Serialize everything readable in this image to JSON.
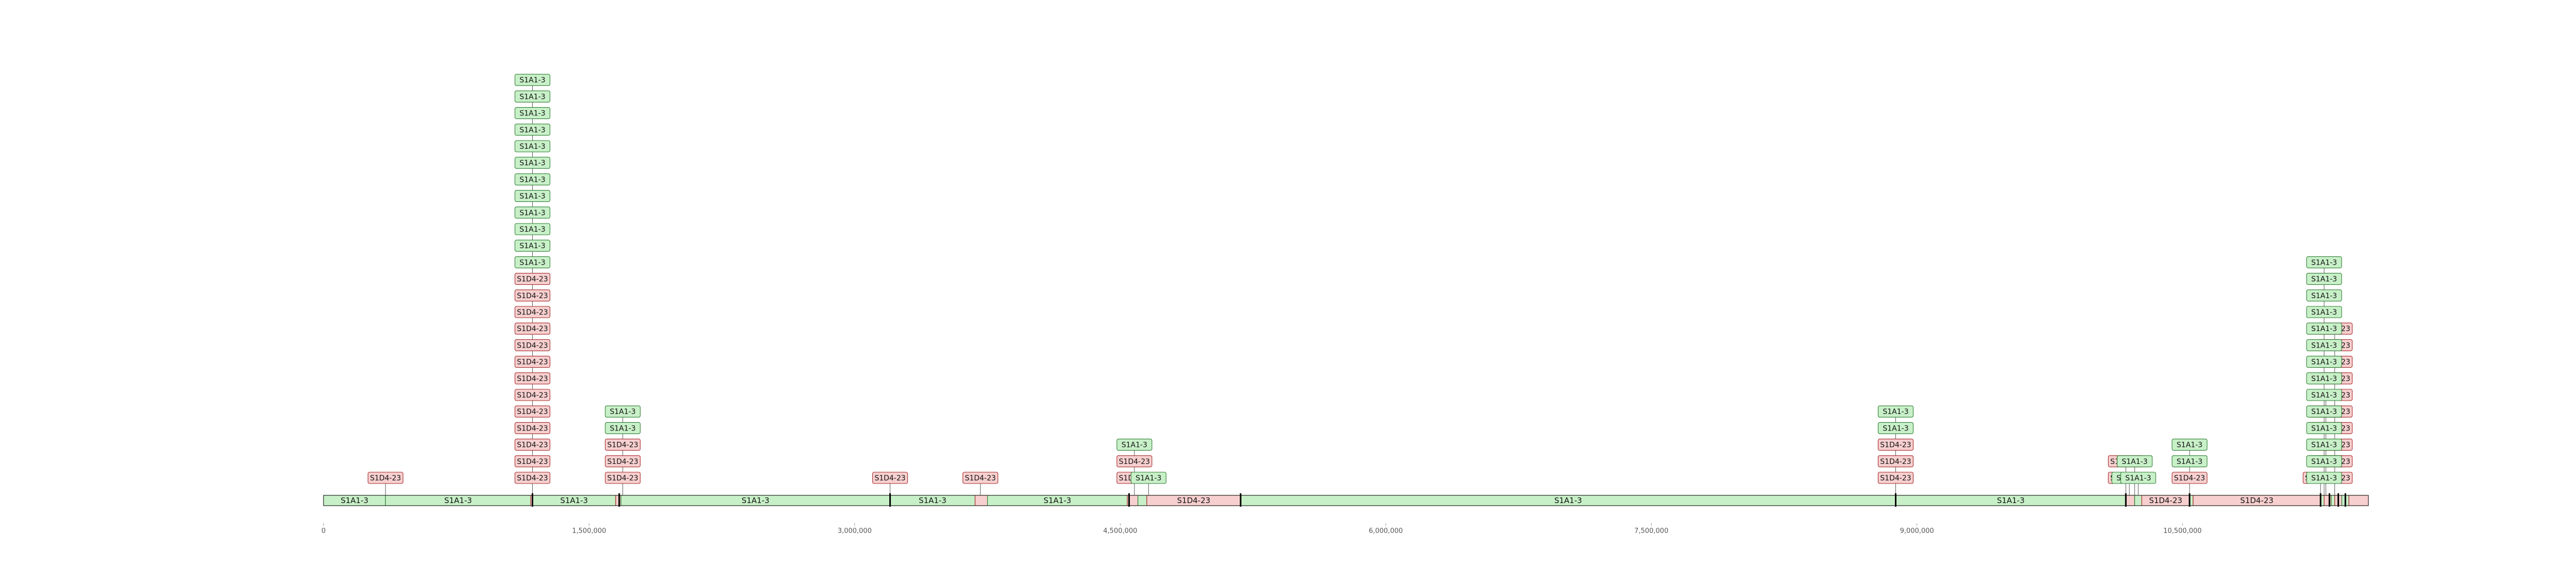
{
  "chart_data": {
    "type": "genome_track",
    "title": "",
    "xlabel": "",
    "ylabel": "",
    "xlim": [
      0,
      11550000
    ],
    "grid": false,
    "colors": {
      "S1A1-3": {
        "fill": "#c8f0c8",
        "stroke": "#2e7d32"
      },
      "S1D4-23": {
        "fill": "#f7cfcf",
        "stroke": "#a52a2a"
      }
    },
    "x_ticks": [
      {
        "value": 0,
        "label": "0"
      },
      {
        "value": 1500000,
        "label": "1,500,000"
      },
      {
        "value": 3000000,
        "label": "3,000,000"
      },
      {
        "value": 4500000,
        "label": "4,500,000"
      },
      {
        "value": 6000000,
        "label": "6,000,000"
      },
      {
        "value": 7500000,
        "label": "7,500,000"
      },
      {
        "value": 9000000,
        "label": "9,000,000"
      },
      {
        "value": 10500000,
        "label": "10,500,000"
      }
    ],
    "segments": [
      {
        "start": 0,
        "end": 350000,
        "type": "S1A1-3",
        "label": "S1A1-3"
      },
      {
        "start": 350000,
        "end": 1170000,
        "type": "S1A1-3",
        "label": "S1A1-3"
      },
      {
        "start": 1170000,
        "end": 1180000,
        "type": "S1D4-23",
        "label": ""
      },
      {
        "start": 1180000,
        "end": 1650000,
        "type": "S1A1-3",
        "label": "S1A1-3"
      },
      {
        "start": 1650000,
        "end": 1680000,
        "type": "S1D4-23",
        "label": ""
      },
      {
        "start": 1680000,
        "end": 3200000,
        "type": "S1A1-3",
        "label": "S1A1-3"
      },
      {
        "start": 3200000,
        "end": 3680000,
        "type": "S1A1-3",
        "label": "S1A1-3"
      },
      {
        "start": 3680000,
        "end": 3750000,
        "type": "S1D4-23",
        "label": ""
      },
      {
        "start": 3750000,
        "end": 4540000,
        "type": "S1A1-3",
        "label": "S1A1-3"
      },
      {
        "start": 4540000,
        "end": 4600000,
        "type": "S1D4-23",
        "label": ""
      },
      {
        "start": 4600000,
        "end": 4650000,
        "type": "S1A1-3",
        "label": ""
      },
      {
        "start": 4650000,
        "end": 5180000,
        "type": "S1D4-23",
        "label": "S1D4-23"
      },
      {
        "start": 5180000,
        "end": 8880000,
        "type": "S1A1-3",
        "label": "S1A1-3"
      },
      {
        "start": 8880000,
        "end": 10180000,
        "type": "S1A1-3",
        "label": "S1A1-3"
      },
      {
        "start": 10180000,
        "end": 10230000,
        "type": "S1D4-23",
        "label": ""
      },
      {
        "start": 10230000,
        "end": 10270000,
        "type": "S1A1-3",
        "label": ""
      },
      {
        "start": 10270000,
        "end": 10540000,
        "type": "S1D4-23",
        "label": "S1D4-23"
      },
      {
        "start": 10540000,
        "end": 10560000,
        "type": "S1A1-3",
        "label": ""
      },
      {
        "start": 10560000,
        "end": 11280000,
        "type": "S1D4-23",
        "label": "S1D4-23"
      },
      {
        "start": 11280000,
        "end": 11300000,
        "type": "S1A1-3",
        "label": ""
      },
      {
        "start": 11300000,
        "end": 11340000,
        "type": "S1D4-23",
        "label": ""
      },
      {
        "start": 11340000,
        "end": 11360000,
        "type": "S1A1-3",
        "label": ""
      },
      {
        "start": 11360000,
        "end": 11400000,
        "type": "S1D4-23",
        "label": ""
      },
      {
        "start": 11400000,
        "end": 11440000,
        "type": "S1A1-3",
        "label": ""
      },
      {
        "start": 11440000,
        "end": 11550000,
        "type": "S1D4-23",
        "label": ""
      }
    ],
    "breakpoints": [
      1180000,
      1670000,
      3200000,
      4550000,
      5180000,
      8880000,
      10180000,
      10540000,
      11280000,
      11330000,
      11380000,
      11420000
    ],
    "annotation_stacks": [
      {
        "x": 350000,
        "labels": [
          "S1D4-23"
        ]
      },
      {
        "x": 1180000,
        "labels": [
          "S1D4-23",
          "S1D4-23",
          "S1D4-23",
          "S1D4-23",
          "S1D4-23",
          "S1D4-23",
          "S1D4-23",
          "S1D4-23",
          "S1D4-23",
          "S1D4-23",
          "S1D4-23",
          "S1D4-23",
          "S1D4-23",
          "S1A1-3",
          "S1A1-3",
          "S1A1-3",
          "S1A1-3",
          "S1A1-3",
          "S1A1-3",
          "S1A1-3",
          "S1A1-3",
          "S1A1-3",
          "S1A1-3",
          "S1A1-3",
          "S1A1-3"
        ]
      },
      {
        "x": 1690000,
        "labels": [
          "S1D4-23",
          "S1D4-23",
          "S1D4-23",
          "S1A1-3",
          "S1A1-3"
        ]
      },
      {
        "x": 3200000,
        "labels": [
          "S1D4-23"
        ]
      },
      {
        "x": 3710000,
        "labels": [
          "S1D4-23"
        ]
      },
      {
        "x": 4580000,
        "labels": [
          "S1D4-23",
          "S1D4-23",
          "S1A1-3"
        ]
      },
      {
        "x": 4660000,
        "labels": [
          "S1A1-3"
        ]
      },
      {
        "x": 8880000,
        "labels": [
          "S1D4-23",
          "S1D4-23",
          "S1D4-23",
          "S1A1-3",
          "S1A1-3"
        ]
      },
      {
        "x": 10180000,
        "labels": [
          "S1D4-23",
          "S1D4-23"
        ]
      },
      {
        "x": 10230000,
        "labels": [
          "S1D4-23",
          "S1A1-3"
        ]
      },
      {
        "x": 10200000,
        "labels": [
          "S1A1-3"
        ]
      },
      {
        "x": 10250000,
        "labels": [
          "S1A1-3"
        ]
      },
      {
        "x": 10540000,
        "labels": [
          "S1D4-23",
          "S1A1-3",
          "S1A1-3"
        ]
      },
      {
        "x": 11280000,
        "labels": [
          "S1D4-23"
        ]
      },
      {
        "x": 11310000,
        "labels": [
          "S1D4-23",
          "S1A1-3",
          "S1D4-23",
          "S1D4-23",
          "S1D4-23",
          "S1D4-23"
        ]
      },
      {
        "x": 11360000,
        "labels": [
          "S1D4-23",
          "S1D4-23",
          "S1D4-23",
          "S1D4-23",
          "S1D4-23",
          "S1D4-23",
          "S1D4-23",
          "S1D4-23",
          "S1D4-23",
          "S1D4-23"
        ]
      },
      {
        "x": 11300000,
        "labels": [
          "S1A1-3",
          "S1A1-3",
          "S1A1-3",
          "S1A1-3",
          "S1A1-3",
          "S1A1-3",
          "S1A1-3",
          "S1A1-3",
          "S1A1-3",
          "S1A1-3",
          "S1A1-3",
          "S1A1-3",
          "S1A1-3",
          "S1A1-3"
        ]
      }
    ]
  }
}
